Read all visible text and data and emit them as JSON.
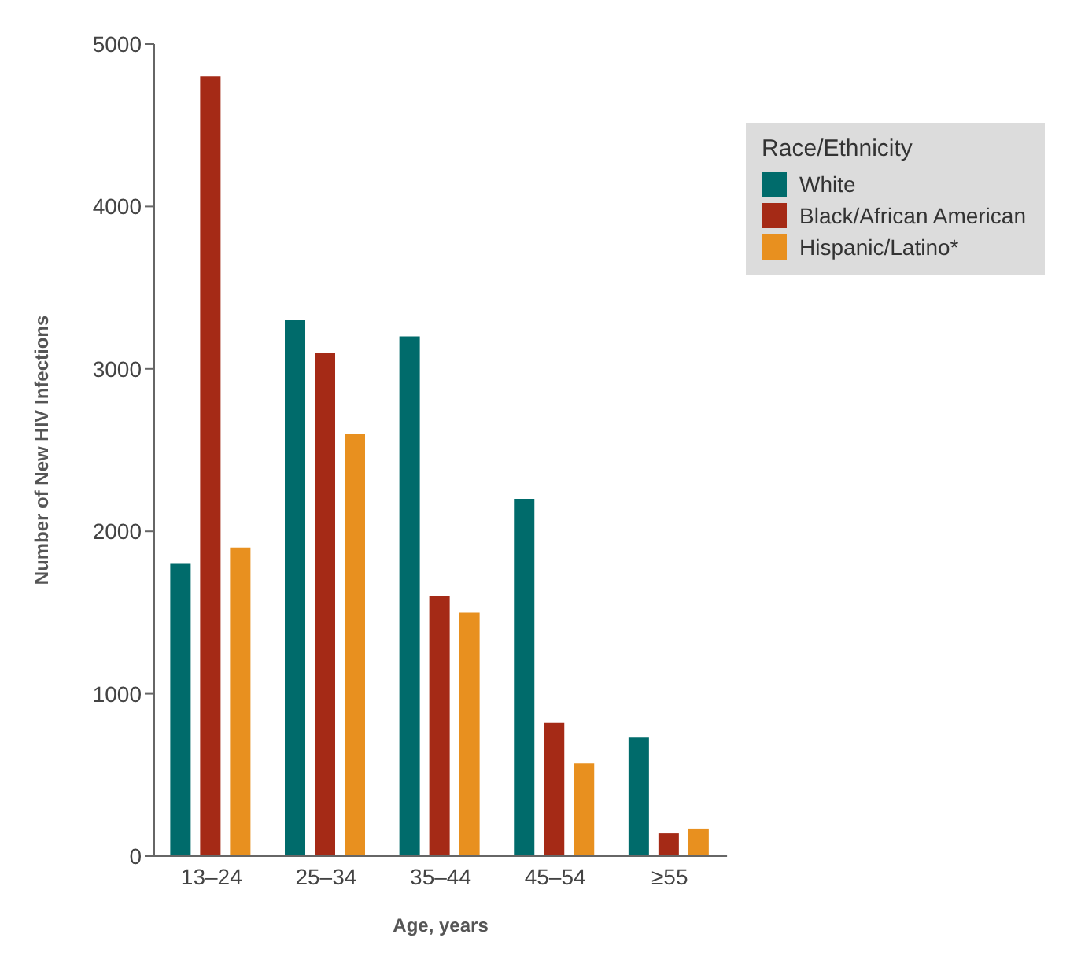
{
  "chart_data": {
    "type": "bar",
    "xlabel": "Age, years",
    "ylabel": "Number of New HIV Infections",
    "legend_title": "Race/Ethnicity",
    "categories": [
      "13–24",
      "25–34",
      "35–44",
      "45–54",
      "≥55"
    ],
    "series": [
      {
        "name": "White",
        "color": "#006b6b",
        "values": [
          1800,
          3300,
          3200,
          2200,
          730
        ]
      },
      {
        "name": "Black/African American",
        "color": "#a52a16",
        "values": [
          4800,
          3100,
          1600,
          820,
          140
        ]
      },
      {
        "name": "Hispanic/Latino*",
        "color": "#e8901f",
        "values": [
          1900,
          2600,
          1500,
          570,
          170
        ]
      }
    ],
    "ylim": [
      0,
      5000
    ],
    "yticks": [
      0,
      1000,
      2000,
      3000,
      4000,
      5000
    ],
    "legend": "top right",
    "grid": false
  }
}
